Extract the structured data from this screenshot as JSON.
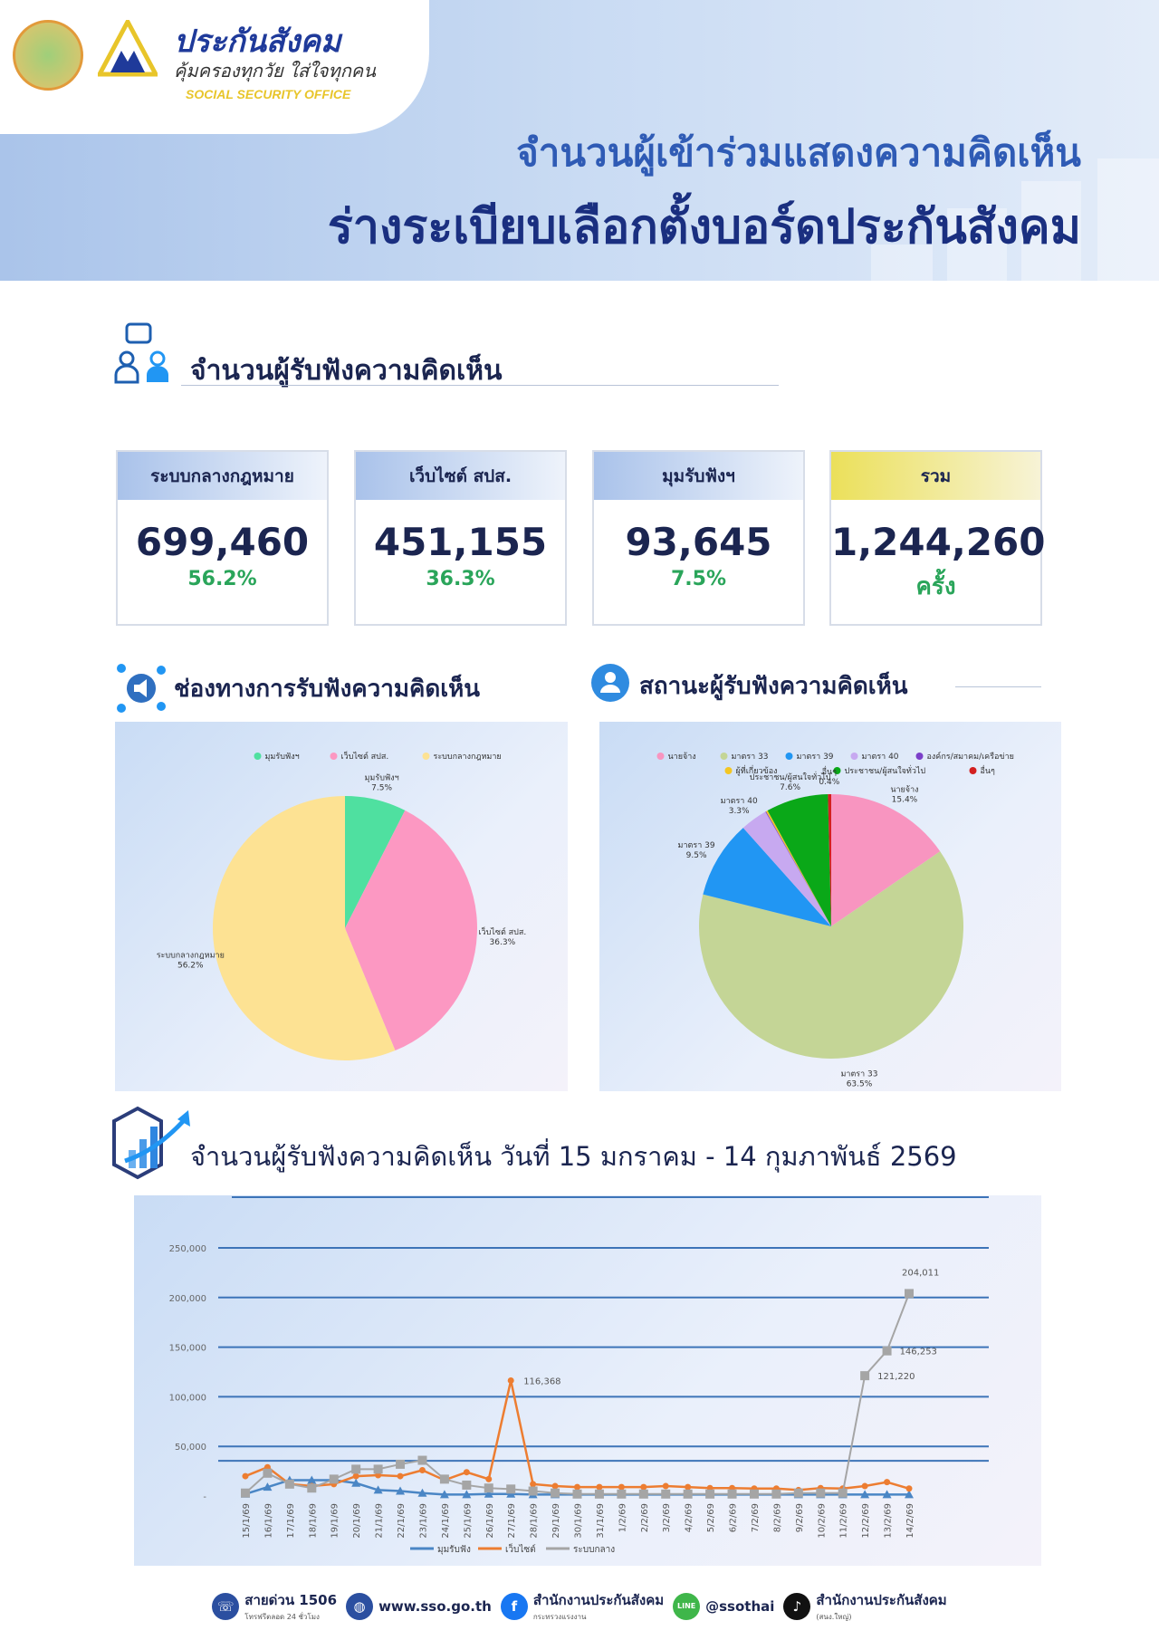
{
  "brand": {
    "name": "ประกันสังคม",
    "slogan": "คุ้มครองทุกวัย ใส่ใจทุกคน",
    "english": "SOCIAL SECURITY OFFICE",
    "logo_caption": "สำนักงานประกันสังคม",
    "seal_caption": "กระทรวงแรงงาน"
  },
  "title": {
    "line1": "จำนวนผู้เข้าร่วมแสดงความคิดเห็น",
    "line2": "ร่างระเบียบเลือกตั้งบอร์ดประกันสังคม"
  },
  "section_counts": {
    "heading": "จำนวนผู้รับฟังความคิดเห็น"
  },
  "cards": [
    {
      "label": "ระบบกลางกฎหมาย",
      "value": "699,460",
      "sub": "56.2%"
    },
    {
      "label": "เว็บไซต์ สปส.",
      "value": "451,155",
      "sub": "36.3%"
    },
    {
      "label": "มุมรับฟังฯ",
      "value": "93,645",
      "sub": "7.5%"
    },
    {
      "label": "รวม",
      "value": "1,244,260",
      "sub": "ครั้ง"
    }
  ],
  "colors": {
    "accent": "#1a2f80",
    "pct_green": "#2aa55a"
  },
  "chart_data": [
    {
      "type": "pie",
      "heading": "ช่องทางการรับฟังความคิดเห็น",
      "legend_position": "top",
      "slices": [
        {
          "name": "มุมรับฟังฯ",
          "label": "มุมรับฟังฯ",
          "value": 7.5,
          "color": "#4fe0a0"
        },
        {
          "name": "เว็บไซต์ สปส.",
          "label": "เว็บไซต์ สปส.",
          "value": 36.3,
          "color": "#fc98c2"
        },
        {
          "name": "ระบบกลางกฎหมาย",
          "label": "ระบบกลางกฎหมาย",
          "value": 56.2,
          "color": "#fde293"
        }
      ]
    },
    {
      "type": "pie",
      "heading": "สถานะผู้รับฟังความคิดเห็น",
      "legend_position": "top",
      "slices": [
        {
          "name": "นายจ้าง",
          "value": 15.4,
          "color": "#f895c0",
          "shown": true
        },
        {
          "name": "มาตรา 33",
          "value": 63.5,
          "color": "#c4d596",
          "shown": true
        },
        {
          "name": "มาตรา 39",
          "value": 9.5,
          "color": "#2196f3",
          "shown": true
        },
        {
          "name": "มาตรา 40",
          "value": 3.3,
          "color": "#c7a9f0",
          "shown": true
        },
        {
          "name": "องค์กร/สมาคม/เครือข่าย",
          "value": 0.1,
          "color": "#7b3fc9",
          "shown": false
        },
        {
          "name": "ผู้ที่เกี่ยวข้อง",
          "value": 0.2,
          "color": "#f3c623",
          "shown": false
        },
        {
          "name": "ประชาชน/ผู้สนใจทั่วไป",
          "value": 7.6,
          "color": "#0aa818",
          "shown": true
        },
        {
          "name": "อื่นๆ",
          "value": 0.4,
          "color": "#d32020",
          "shown": true
        }
      ]
    },
    {
      "type": "line",
      "heading": "จำนวนผู้รับฟังความคิดเห็น วันที่ 15 มกราคม - 14 กุมภาพันธ์ 2569",
      "grid": true,
      "legend_position": "bottom",
      "ylim": [
        0,
        250000
      ],
      "yticks": [
        "-",
        "50,000",
        "100,000",
        "150,000",
        "200,000",
        "250,000"
      ],
      "categories": [
        "15/1/69",
        "16/1/69",
        "17/1/69",
        "18/1/69",
        "19/1/69",
        "20/1/69",
        "21/1/69",
        "22/1/69",
        "23/1/69",
        "24/1/69",
        "25/1/69",
        "26/1/69",
        "27/1/69",
        "28/1/69",
        "29/1/69",
        "30/1/69",
        "31/1/69",
        "1/2/69",
        "2/2/69",
        "3/2/69",
        "4/2/69",
        "5/2/69",
        "6/2/69",
        "7/2/69",
        "8/2/69",
        "9/2/69",
        "10/2/69",
        "11/2/69",
        "12/2/69",
        "13/2/69",
        "14/2/69"
      ],
      "series": [
        {
          "name": "มุมรับฟัง",
          "color": "#4a86c5",
          "marker": "triangle",
          "values": [
            2000,
            9000,
            16000,
            16000,
            16000,
            13000,
            6000,
            5000,
            3000,
            1500,
            1500,
            2000,
            2000,
            1500,
            1500,
            1500,
            1500,
            1500,
            1500,
            1500,
            1500,
            1500,
            1500,
            1500,
            1500,
            1500,
            1500,
            1500,
            1500,
            1500,
            1500
          ]
        },
        {
          "name": "เว็บไซต์",
          "color": "#ed7d31",
          "marker": "circle",
          "values": [
            20000,
            29000,
            12000,
            10000,
            12000,
            20000,
            21000,
            20000,
            26000,
            16000,
            24000,
            17000,
            116368,
            12000,
            10000,
            9000,
            9000,
            9000,
            9000,
            10000,
            9000,
            8000,
            8000,
            7500,
            7500,
            6000,
            8000,
            7500,
            10000,
            14000,
            7500
          ],
          "labels": {
            "12": "116,368"
          }
        },
        {
          "name": "ระบบกลาง",
          "color": "#a5a5a5",
          "marker": "square",
          "values": [
            3000,
            23000,
            12000,
            8000,
            17000,
            27000,
            27000,
            32000,
            36000,
            17000,
            11000,
            8000,
            7000,
            5000,
            3000,
            2000,
            2000,
            2000,
            2000,
            2000,
            2000,
            2000,
            2000,
            2000,
            2000,
            3000,
            3000,
            3000,
            121220,
            146253,
            204011
          ],
          "labels": {
            "28": "121,220",
            "29": "146,253",
            "30": "204,011"
          }
        }
      ]
    }
  ],
  "footer": {
    "hotline": "สายด่วน 1506",
    "hotline_sub": "โทรฟรีตลอด 24 ชั่วโมง",
    "website": "www.sso.go.th",
    "facebook": "สำนักงานประกันสังคม",
    "facebook_sub": "กระทรวงแรงงาน",
    "line": "@ssothai",
    "tiktok": "สำนักงานประกันสังคม",
    "tiktok_sub": "(สนง.ใหญ่)"
  }
}
